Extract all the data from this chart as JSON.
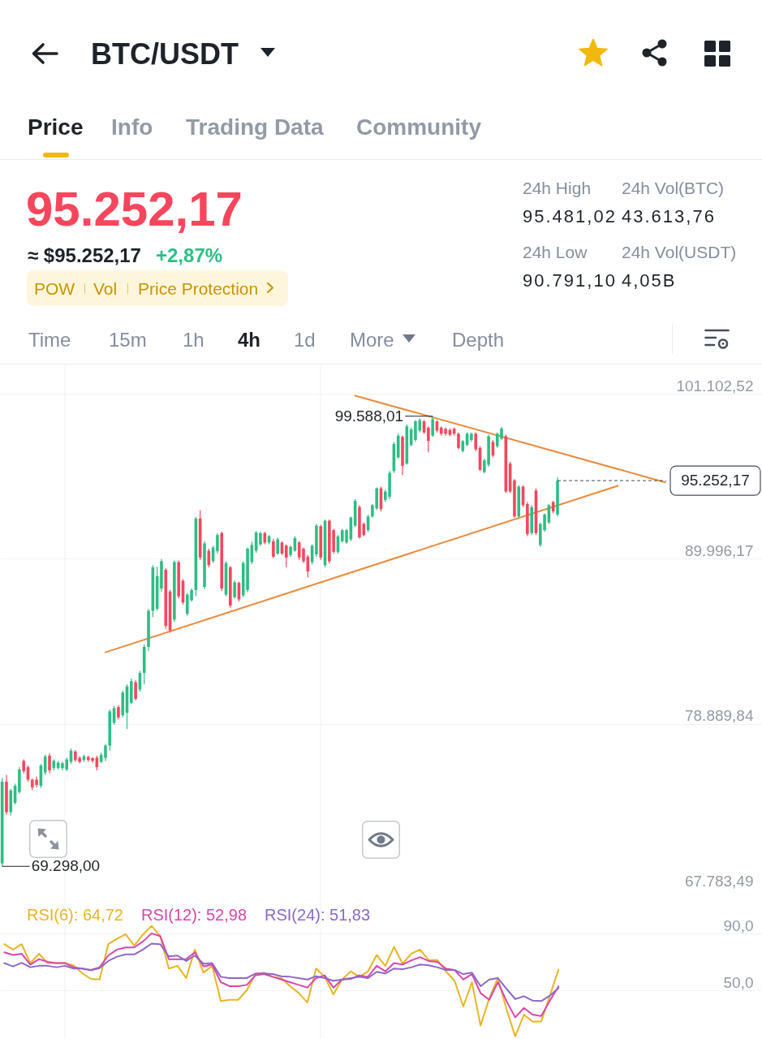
{
  "chart_data": [
    {
      "type": "other",
      "title": "BTC/USDT",
      "annotations": [
        "Price",
        "Info",
        "Trading Data",
        "Community",
        "95.252,17",
        "≈ $95.252,17",
        "+2,87%",
        "POW",
        "Vol",
        "Price Protection",
        "24h High",
        "95.481,02",
        "24h Vol(BTC)",
        "43.613,76",
        "24h Low",
        "90.791,10",
        "24h Vol(USDT)",
        "4,05B",
        "Time",
        "15m",
        "1h",
        "4h",
        "1d",
        "More",
        "Depth"
      ]
    },
    {
      "type": "candlestick",
      "categories": [
        null,
        null,
        null,
        null,
        null,
        null,
        null,
        null,
        null,
        null,
        null,
        null,
        null,
        null,
        null,
        null,
        null,
        null,
        null,
        null,
        null,
        null,
        null,
        null,
        null,
        null,
        null,
        null,
        null,
        null,
        null,
        null,
        null,
        null,
        null,
        null,
        null,
        null,
        null,
        null,
        null,
        null,
        null,
        null,
        null,
        null,
        null,
        null,
        null,
        null,
        null,
        null,
        null,
        null,
        null,
        null,
        null,
        null,
        null,
        null,
        null,
        null,
        null,
        null,
        null,
        null,
        null,
        null,
        null,
        null,
        null,
        null,
        null,
        null,
        null,
        null,
        null,
        null,
        null,
        null,
        null,
        null,
        null,
        null,
        null,
        null,
        null,
        null,
        null,
        null,
        null,
        null,
        null,
        null,
        null,
        null,
        null,
        null,
        null,
        null,
        null,
        null,
        null,
        null,
        null,
        null,
        null,
        null,
        null,
        null,
        null,
        null,
        null,
        null,
        null,
        null,
        null,
        null,
        null,
        null,
        null,
        null,
        null,
        null,
        null,
        null,
        null,
        null,
        null,
        null,
        null,
        null,
        null,
        null,
        null,
        null,
        null,
        null,
        null,
        null,
        null,
        null,
        null,
        null,
        null,
        null,
        null,
        null,
        null,
        null,
        null,
        null,
        null,
        null,
        null,
        null,
        null,
        null,
        null,
        null,
        null,
        null,
        null,
        null,
        null,
        null,
        null,
        null,
        null,
        null,
        null,
        null,
        null,
        null,
        null,
        null,
        null
      ],
      "ohlc": [
        [
          69490,
          75240,
          69298,
          74990
        ],
        [
          74990,
          75450,
          72770,
          72940
        ],
        [
          72940,
          74510,
          72730,
          74400
        ],
        [
          73570,
          74860,
          73460,
          74720
        ],
        [
          74300,
          75970,
          74190,
          75820
        ],
        [
          76390,
          76490,
          75550,
          75700
        ],
        [
          75970,
          76080,
          74990,
          75130
        ],
        [
          75130,
          75200,
          74440,
          74610
        ],
        [
          75130,
          75340,
          74610,
          74780
        ],
        [
          74720,
          76180,
          74570,
          76080
        ],
        [
          75620,
          76810,
          75450,
          76700
        ],
        [
          76740,
          76910,
          75550,
          75760
        ],
        [
          75910,
          76490,
          75760,
          76390
        ],
        [
          75910,
          76390,
          75820,
          76280
        ],
        [
          75910,
          76330,
          75760,
          76240
        ],
        [
          75820,
          76600,
          75700,
          76490
        ],
        [
          76330,
          77220,
          76180,
          77080
        ],
        [
          77020,
          77120,
          76330,
          76450
        ],
        [
          76600,
          76700,
          76240,
          76330
        ],
        [
          76450,
          76810,
          76330,
          76700
        ],
        [
          76660,
          76740,
          76330,
          76450
        ],
        [
          76580,
          76660,
          76280,
          76390
        ],
        [
          76600,
          76740,
          75760,
          75970
        ],
        [
          76330,
          76950,
          76240,
          76810
        ],
        [
          76600,
          77540,
          76390,
          77430
        ],
        [
          77430,
          79840,
          77080,
          79730
        ],
        [
          78960,
          80090,
          78830,
          79940
        ],
        [
          80010,
          80150,
          79170,
          79320
        ],
        [
          79460,
          81140,
          79320,
          80990
        ],
        [
          79630,
          81550,
          78540,
          81410
        ],
        [
          80300,
          81930,
          80210,
          81760
        ],
        [
          81680,
          81820,
          80470,
          80570
        ],
        [
          81200,
          82450,
          81050,
          82310
        ],
        [
          82310,
          84230,
          81550,
          84060
        ],
        [
          84060,
          86630,
          83770,
          86490
        ],
        [
          86490,
          89560,
          86070,
          89420
        ],
        [
          86630,
          89460,
          86490,
          88830
        ],
        [
          87990,
          89980,
          87780,
          89830
        ],
        [
          89250,
          89350,
          85270,
          85480
        ],
        [
          87780,
          87890,
          85020,
          85170
        ],
        [
          85900,
          89880,
          85740,
          89770
        ],
        [
          89770,
          89880,
          87320,
          87470
        ],
        [
          88520,
          88620,
          86910,
          87050
        ],
        [
          86280,
          87680,
          86150,
          87580
        ],
        [
          87200,
          87990,
          87120,
          87890
        ],
        [
          87890,
          92800,
          87470,
          92700
        ],
        [
          92700,
          93260,
          89920,
          90080
        ],
        [
          88100,
          91170,
          87950,
          91030
        ],
        [
          90540,
          90670,
          89420,
          89560
        ],
        [
          89830,
          90880,
          89710,
          90750
        ],
        [
          90500,
          91720,
          90340,
          91590
        ],
        [
          91720,
          91800,
          87830,
          87990
        ],
        [
          87580,
          89830,
          87470,
          89710
        ],
        [
          89420,
          89500,
          86700,
          86840
        ],
        [
          87410,
          88520,
          87320,
          88410
        ],
        [
          88370,
          88450,
          87120,
          87260
        ],
        [
          87530,
          89830,
          87410,
          89710
        ],
        [
          87890,
          90750,
          87740,
          90670
        ],
        [
          89770,
          91130,
          89620,
          90920
        ],
        [
          90540,
          91860,
          90400,
          91760
        ],
        [
          90960,
          91800,
          90880,
          91720
        ],
        [
          91720,
          91800,
          90960,
          91090
        ],
        [
          91090,
          91590,
          90960,
          91510
        ],
        [
          91170,
          91340,
          90040,
          90130
        ],
        [
          90340,
          91440,
          90250,
          91300
        ],
        [
          91090,
          91170,
          90250,
          90340
        ],
        [
          90880,
          90960,
          89420,
          90080
        ],
        [
          90250,
          90880,
          90130,
          90800
        ],
        [
          90540,
          91510,
          90460,
          91380
        ],
        [
          91090,
          91170,
          89920,
          90080
        ],
        [
          90670,
          90750,
          89710,
          89830
        ],
        [
          90130,
          90250,
          88730,
          89140
        ],
        [
          89770,
          90960,
          89620,
          90880
        ],
        [
          90290,
          92340,
          90130,
          92220
        ],
        [
          92180,
          92280,
          89920,
          90080
        ],
        [
          89560,
          92640,
          89420,
          92550
        ],
        [
          92550,
          92640,
          89670,
          89830
        ],
        [
          91920,
          92010,
          90340,
          90460
        ],
        [
          90460,
          91590,
          90340,
          91510
        ],
        [
          91170,
          92010,
          91090,
          91920
        ],
        [
          91090,
          92010,
          91000,
          91920
        ],
        [
          91300,
          92840,
          91170,
          92760
        ],
        [
          92220,
          94020,
          92130,
          93890
        ],
        [
          93470,
          93600,
          91340,
          91440
        ],
        [
          92340,
          92430,
          91510,
          91590
        ],
        [
          91920,
          92970,
          91800,
          92840
        ],
        [
          92840,
          93680,
          92760,
          93600
        ],
        [
          93390,
          94790,
          93260,
          94730
        ],
        [
          94730,
          94850,
          93180,
          93330
        ],
        [
          93950,
          94640,
          93810,
          94520
        ],
        [
          94160,
          95900,
          94020,
          95770
        ],
        [
          95900,
          97860,
          95770,
          97720
        ],
        [
          96820,
          98410,
          96730,
          98280
        ],
        [
          98200,
          98280,
          95630,
          96250
        ],
        [
          96400,
          99030,
          96320,
          98910
        ],
        [
          97650,
          98820,
          97570,
          98700
        ],
        [
          97990,
          99330,
          97860,
          99240
        ],
        [
          98620,
          99450,
          98490,
          99330
        ],
        [
          99240,
          99330,
          98410,
          98490
        ],
        [
          98820,
          98910,
          97150,
          97930
        ],
        [
          98280,
          99588.01,
          98200,
          99390
        ],
        [
          99240,
          99330,
          98490,
          98620
        ],
        [
          98820,
          98910,
          98280,
          98410
        ],
        [
          98740,
          98820,
          98280,
          98410
        ],
        [
          98660,
          98760,
          98240,
          98340
        ],
        [
          98740,
          98820,
          98280,
          98410
        ],
        [
          98410,
          98490,
          97360,
          97450
        ],
        [
          97240,
          97990,
          97150,
          97910
        ],
        [
          97650,
          98490,
          97570,
          98410
        ],
        [
          97990,
          98490,
          97860,
          98410
        ],
        [
          98410,
          98490,
          97240,
          97360
        ],
        [
          97450,
          97570,
          95900,
          95980
        ],
        [
          95830,
          96730,
          95730,
          96610
        ],
        [
          96320,
          98340,
          96190,
          98240
        ],
        [
          97860,
          97990,
          96820,
          96940
        ],
        [
          97570,
          98490,
          97450,
          98410
        ],
        [
          98070,
          98870,
          97990,
          98760
        ],
        [
          98240,
          98340,
          94430,
          94520
        ],
        [
          96400,
          96520,
          94430,
          94520
        ],
        [
          95270,
          95350,
          92760,
          92840
        ],
        [
          92840,
          94940,
          92760,
          94850
        ],
        [
          94850,
          94940,
          93470,
          93600
        ],
        [
          93680,
          93810,
          91510,
          91650
        ],
        [
          91720,
          93600,
          91590,
          93470
        ],
        [
          94580,
          94730,
          91590,
          91720
        ],
        [
          90920,
          92430,
          90791.1,
          92340
        ],
        [
          91920,
          93050,
          91800,
          92970
        ],
        [
          92430,
          93680,
          92340,
          93600
        ],
        [
          93810,
          93890,
          93050,
          93180
        ],
        [
          92970,
          95481.02,
          92840,
          95252.17
        ],
        null,
        null,
        null,
        null,
        null,
        null,
        null,
        null,
        null,
        null,
        null,
        null,
        null,
        null,
        null,
        null,
        null,
        null,
        null,
        null,
        null,
        null,
        null,
        null,
        null,
        null,
        null,
        null,
        null,
        null,
        null,
        null,
        null,
        null,
        null,
        null,
        null,
        null,
        null,
        null,
        null,
        null,
        null,
        null,
        null,
        null,
        null
      ],
      "colors": [
        "#2ebd85",
        "#f6465d",
        "#2ebd85",
        "#2ebd85",
        "#2ebd85",
        "#f6465d",
        "#f6465d",
        "#f6465d",
        "#f6465d",
        "#2ebd85",
        "#2ebd85",
        "#f6465d",
        "#2ebd85",
        "#2ebd85",
        "#2ebd85",
        "#2ebd85",
        "#2ebd85",
        "#f6465d",
        "#f6465d",
        "#2ebd85",
        "#f6465d",
        "#f6465d",
        "#f6465d",
        "#2ebd85",
        "#2ebd85",
        "#2ebd85",
        "#2ebd85",
        "#f6465d",
        "#2ebd85",
        "#2ebd85",
        "#2ebd85",
        "#f6465d",
        "#2ebd85",
        "#2ebd85",
        "#2ebd85",
        "#2ebd85",
        "#2ebd85",
        "#2ebd85",
        "#f6465d",
        "#f6465d",
        "#2ebd85",
        "#f6465d",
        "#f6465d",
        "#2ebd85",
        "#2ebd85",
        "#2ebd85",
        "#f6465d",
        "#2ebd85",
        "#f6465d",
        "#2ebd85",
        "#2ebd85",
        "#f6465d",
        "#2ebd85",
        "#f6465d",
        "#2ebd85",
        "#f6465d",
        "#2ebd85",
        "#2ebd85",
        "#2ebd85",
        "#2ebd85",
        "#2ebd85",
        "#f6465d",
        "#2ebd85",
        "#f6465d",
        "#2ebd85",
        "#f6465d",
        "#f6465d",
        "#2ebd85",
        "#2ebd85",
        "#f6465d",
        "#f6465d",
        "#f6465d",
        "#2ebd85",
        "#2ebd85",
        "#f6465d",
        "#2ebd85",
        "#f6465d",
        "#f6465d",
        "#2ebd85",
        "#2ebd85",
        "#2ebd85",
        "#2ebd85",
        "#2ebd85",
        "#f6465d",
        "#f6465d",
        "#2ebd85",
        "#2ebd85",
        "#2ebd85",
        "#f6465d",
        "#2ebd85",
        "#2ebd85",
        "#2ebd85",
        "#2ebd85",
        "#f6465d",
        "#2ebd85",
        "#2ebd85",
        "#2ebd85",
        "#2ebd85",
        "#f6465d",
        "#f6465d",
        "#2ebd85",
        "#f6465d",
        "#f6465d",
        "#f6465d",
        "#f6465d",
        "#f6465d",
        "#f6465d",
        "#2ebd85",
        "#2ebd85",
        "#2ebd85",
        "#f6465d",
        "#f6465d",
        "#2ebd85",
        "#2ebd85",
        "#f6465d",
        "#2ebd85",
        "#2ebd85",
        "#f6465d",
        "#f6465d",
        "#f6465d",
        "#2ebd85",
        "#f6465d",
        "#f6465d",
        "#2ebd85",
        "#f6465d",
        "#2ebd85",
        "#2ebd85",
        "#2ebd85",
        "#f6465d",
        "#2ebd85",
        null,
        null,
        null,
        null,
        null,
        null,
        null,
        null,
        null,
        null,
        null,
        null,
        null,
        null,
        null,
        null,
        null,
        null,
        null,
        null,
        null,
        null,
        null,
        null,
        null,
        null,
        null,
        null,
        null,
        null,
        null,
        null,
        null,
        null,
        null,
        null,
        null,
        null,
        null,
        null,
        null,
        null,
        null,
        null,
        null,
        null,
        null
      ],
      "series": [
        {
          "type": "line",
          "color": "#eb8a3c",
          "values": [
            null,
            null,
            null,
            null,
            null,
            null,
            null,
            null,
            null,
            null,
            null,
            null,
            null,
            null,
            null,
            null,
            null,
            null,
            null,
            null,
            null,
            null,
            null,
            null,
            83700,
            null,
            null,
            null,
            null,
            null,
            null,
            null,
            null,
            null,
            null,
            null,
            null,
            null,
            null,
            null,
            null,
            null,
            null,
            null,
            null,
            null,
            null,
            null,
            null,
            null,
            null,
            null,
            null,
            null,
            null,
            null,
            null,
            null,
            null,
            null,
            null,
            null,
            null,
            null,
            null,
            null,
            null,
            null,
            null,
            null,
            null,
            null,
            null,
            null,
            null,
            null,
            null,
            null,
            null,
            null,
            null,
            null,
            null,
            null,
            null,
            null,
            null,
            null,
            null,
            null,
            null,
            null,
            null,
            null,
            null,
            null,
            null,
            null,
            null,
            null,
            null,
            null,
            null,
            null,
            null,
            null,
            null,
            null,
            null,
            null,
            null,
            null,
            null,
            null,
            null,
            null,
            null,
            null,
            null,
            null,
            null,
            null,
            null,
            null,
            null,
            null,
            null,
            null,
            null,
            null,
            null,
            null,
            null,
            null,
            null,
            null,
            null,
            null,
            null,
            null,
            null,
            null,
            null,
            94900,
            null,
            null,
            null,
            null,
            null,
            null,
            null,
            null,
            null,
            null,
            null,
            null,
            null,
            null,
            null,
            null,
            null,
            null,
            null,
            null,
            null,
            null,
            null,
            null,
            null,
            null,
            null,
            null,
            null,
            null,
            null,
            null,
            null
          ]
        },
        {
          "type": "line",
          "color": "#eb8a3c",
          "values": [
            null,
            null,
            null,
            null,
            null,
            null,
            null,
            null,
            null,
            null,
            null,
            null,
            null,
            null,
            null,
            null,
            null,
            null,
            null,
            null,
            null,
            null,
            null,
            null,
            null,
            null,
            null,
            null,
            null,
            null,
            null,
            null,
            null,
            null,
            null,
            null,
            null,
            null,
            null,
            null,
            null,
            null,
            null,
            null,
            null,
            null,
            null,
            null,
            null,
            null,
            null,
            null,
            null,
            null,
            null,
            null,
            null,
            null,
            null,
            null,
            null,
            null,
            null,
            null,
            null,
            null,
            null,
            null,
            null,
            null,
            null,
            null,
            null,
            null,
            null,
            null,
            null,
            null,
            null,
            null,
            null,
            null,
            100970,
            null,
            null,
            null,
            null,
            null,
            null,
            null,
            null,
            null,
            null,
            null,
            null,
            null,
            null,
            null,
            null,
            null,
            null,
            null,
            null,
            null,
            null,
            null,
            null,
            null,
            null,
            null,
            null,
            null,
            null,
            null,
            null,
            null,
            null,
            null,
            null,
            null,
            null,
            null,
            null,
            null,
            null,
            null,
            null,
            null,
            null,
            null,
            null,
            null,
            null,
            null,
            null,
            null,
            null,
            null,
            null,
            null,
            null,
            null,
            null,
            null,
            null,
            null,
            null,
            null,
            null,
            null,
            null,
            null,
            null,
            null,
            95140,
            null,
            null,
            null,
            null,
            null,
            null,
            null,
            null,
            null,
            null,
            null,
            null,
            null,
            null,
            null,
            null,
            null,
            null,
            null,
            null,
            null,
            null
          ]
        }
      ],
      "ylim": [
        67783.49,
        103069
      ],
      "yticks": [
        {
          "value": 101102.52,
          "label": "101.102,52"
        },
        {
          "value": 89996.17,
          "label": "89.996,17"
        },
        {
          "value": 78889.84,
          "label": "78.889,84"
        },
        {
          "value": 67783.49,
          "label": "67.783,49"
        }
      ],
      "grid": true,
      "tick_labels": "y",
      "ref_lines": [
        {
          "axis": "y",
          "value": 95252.17,
          "label": "95.252,17",
          "color": "#474d57",
          "line_style": "dashed"
        }
      ],
      "annotations": [
        "99.588,01",
        "69.298,00"
      ]
    },
    {
      "type": "line",
      "categories": [
        null,
        null,
        null,
        null,
        null,
        null,
        null,
        null,
        null,
        null,
        null,
        null,
        null,
        null,
        null,
        null,
        null,
        null,
        null,
        null,
        null,
        null,
        null,
        null,
        null,
        null,
        null,
        null,
        null,
        null,
        null,
        null,
        null,
        null,
        null,
        null,
        null,
        null,
        null,
        null,
        null,
        null,
        null,
        null,
        null,
        null,
        null,
        null,
        null,
        null,
        null,
        null,
        null,
        null,
        null,
        null,
        null,
        null,
        null,
        null,
        null,
        null,
        null,
        null,
        null,
        null,
        null,
        null,
        null,
        null,
        null,
        null,
        null,
        null,
        null,
        null,
        null,
        null,
        null,
        null,
        null,
        null,
        null,
        null,
        null,
        null,
        null,
        null
      ],
      "series": [
        {
          "name": "RSI(6): 64,72",
          "color": "#e8b424",
          "values": [
            82.6,
            78.8,
            82.6,
            69.3,
            75.9,
            69.3,
            69.3,
            69.3,
            67.7,
            62.2,
            58.2,
            57.8,
            82.6,
            86.4,
            89.6,
            81.6,
            89.3,
            95.5,
            88.3,
            65.5,
            67.4,
            58.8,
            78.8,
            62.6,
            67.4,
            42.6,
            43.5,
            43.5,
            50.2,
            61.6,
            62.6,
            59.7,
            58.8,
            53.1,
            48.3,
            41.6,
            65.5,
            59.7,
            47.4,
            57.8,
            63.5,
            59.7,
            63.5,
            75.0,
            67.4,
            80.7,
            68.9,
            75.9,
            78.8,
            71.5,
            71.5,
            63.5,
            56.9,
            38.8,
            55.9,
            25.5,
            44.5,
            58.8,
            36.9,
            17.8,
            33.1,
            28.3,
            28.3,
            46.4,
            64.72,
            null,
            null,
            null,
            null,
            null,
            null,
            null,
            null,
            null,
            null,
            null,
            null,
            null,
            null,
            null,
            null,
            null,
            null,
            null,
            null,
            null,
            null,
            null
          ]
        },
        {
          "name": "RSI(12): 52,98",
          "color": "#d846ad",
          "values": [
            76.9,
            75.0,
            75.9,
            68.3,
            72.1,
            70.2,
            69.3,
            69.3,
            66.4,
            65.5,
            64.5,
            66.4,
            74.6,
            78.8,
            80.3,
            80.3,
            84.5,
            90.2,
            88.3,
            72.1,
            72.1,
            72.1,
            76.9,
            67.0,
            68.3,
            55.9,
            53.1,
            53.1,
            54.0,
            60.7,
            61.6,
            59.7,
            57.8,
            55.9,
            54.0,
            52.1,
            58.8,
            60.7,
            52.1,
            57.8,
            58.2,
            60.7,
            59.7,
            67.4,
            63.5,
            69.3,
            68.3,
            71.2,
            73.5,
            70.8,
            70.2,
            65.5,
            64.5,
            57.8,
            61.6,
            48.3,
            43.5,
            55.9,
            42.6,
            31.2,
            37.8,
            33.1,
            32.1,
            43.0,
            52.98,
            null,
            null,
            null,
            null,
            null,
            null,
            null,
            null,
            null,
            null,
            null,
            null,
            null,
            null,
            null,
            null,
            null,
            null,
            null,
            null,
            null,
            null,
            null
          ]
        },
        {
          "name": "RSI(24): 51,83",
          "color": "#8b68c9",
          "values": [
            69.3,
            67.0,
            69.5,
            66.4,
            67.4,
            67.4,
            66.4,
            67.4,
            65.5,
            65.5,
            64.3,
            65.8,
            70.8,
            73.8,
            75.4,
            75.4,
            78.8,
            83.0,
            82.6,
            74.0,
            74.6,
            70.8,
            74.6,
            68.9,
            69.3,
            59.7,
            58.8,
            58.8,
            58.8,
            62.0,
            62.0,
            61.6,
            60.1,
            59.7,
            58.8,
            57.8,
            60.1,
            58.8,
            56.9,
            57.8,
            58.8,
            59.7,
            58.8,
            63.2,
            62.0,
            65.5,
            65.1,
            66.4,
            68.3,
            67.7,
            66.4,
            64.5,
            64.5,
            61.6,
            62.6,
            53.1,
            57.8,
            58.8,
            51.2,
            44.1,
            46.0,
            43.0,
            42.6,
            46.4,
            51.83,
            null,
            null,
            null,
            null,
            null,
            null,
            null,
            null,
            null,
            null,
            null,
            null,
            null,
            null,
            null,
            null,
            null,
            null,
            null,
            null,
            null,
            null,
            null
          ]
        }
      ],
      "ylim": [
        16,
        121.5
      ],
      "yticks": [
        {
          "value": 90,
          "label": "90,0"
        },
        {
          "value": 50,
          "label": "50,0"
        }
      ],
      "grid": true,
      "tick_labels": "y"
    }
  ]
}
